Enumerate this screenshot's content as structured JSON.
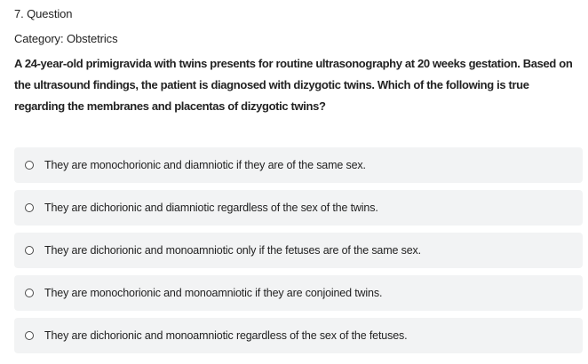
{
  "question": {
    "number_label": "7. Question",
    "category_label": "Category: Obstetrics",
    "stem": "A 24-year-old primigravida with twins presents for routine ultrasonography at 20 weeks gestation. Based on the ultrasound findings, the patient is diagnosed with dizygotic twins. Which of the following is true regarding the membranes and placentas of dizygotic twins?"
  },
  "options": [
    {
      "text": "They are monochorionic and diamniotic if they are of the same sex."
    },
    {
      "text": "They are dichorionic and diamniotic regardless of the sex of the twins."
    },
    {
      "text": "They are dichorionic and monoamniotic only if the fetuses are of the same sex."
    },
    {
      "text": "They are monochorionic and monoamniotic if they are conjoined twins."
    },
    {
      "text": "They are dichorionic and monoamniotic regardless of the sex of the fetuses."
    }
  ],
  "icons": {
    "radio": "radio-unselected-icon"
  }
}
